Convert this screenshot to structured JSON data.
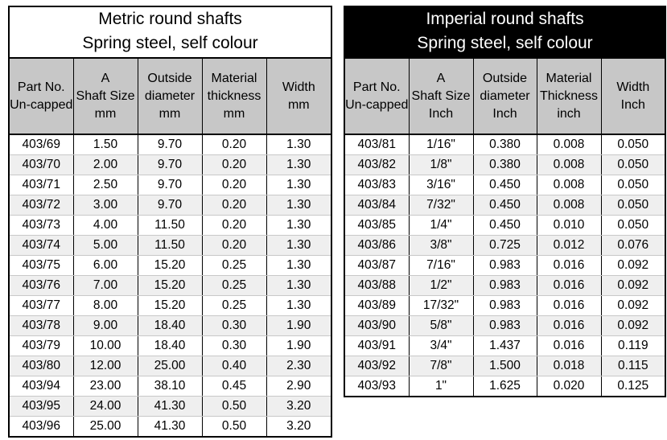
{
  "metric": {
    "title_line1": "Metric round shafts",
    "title_line2": "Spring steel, self colour",
    "headers": [
      [
        "Part No.",
        "Un-capped"
      ],
      [
        "A",
        "Shaft Size",
        "mm"
      ],
      [
        "Outside",
        "diameter",
        "mm"
      ],
      [
        "Material",
        "thickness",
        "mm"
      ],
      [
        "Width",
        "mm"
      ]
    ],
    "rows": [
      [
        "403/69",
        "1.50",
        "9.70",
        "0.20",
        "1.30"
      ],
      [
        "403/70",
        "2.00",
        "9.70",
        "0.20",
        "1.30"
      ],
      [
        "403/71",
        "2.50",
        "9.70",
        "0.20",
        "1.30"
      ],
      [
        "403/72",
        "3.00",
        "9.70",
        "0.20",
        "1.30"
      ],
      [
        "403/73",
        "4.00",
        "11.50",
        "0.20",
        "1.30"
      ],
      [
        "403/74",
        "5.00",
        "11.50",
        "0.20",
        "1.30"
      ],
      [
        "403/75",
        "6.00",
        "15.20",
        "0.25",
        "1.30"
      ],
      [
        "403/76",
        "7.00",
        "15.20",
        "0.25",
        "1.30"
      ],
      [
        "403/77",
        "8.00",
        "15.20",
        "0.25",
        "1.30"
      ],
      [
        "403/78",
        "9.00",
        "18.40",
        "0.30",
        "1.90"
      ],
      [
        "403/79",
        "10.00",
        "18.40",
        "0.30",
        "1.90"
      ],
      [
        "403/80",
        "12.00",
        "25.00",
        "0.40",
        "2.30"
      ],
      [
        "403/94",
        "23.00",
        "38.10",
        "0.45",
        "2.90"
      ],
      [
        "403/95",
        "24.00",
        "41.30",
        "0.50",
        "3.20"
      ],
      [
        "403/96",
        "25.00",
        "41.30",
        "0.50",
        "3.20"
      ]
    ]
  },
  "imperial": {
    "title_line1": "Imperial round shafts",
    "title_line2": "Spring steel, self colour",
    "headers": [
      [
        "Part No.",
        "Un-capped"
      ],
      [
        "A",
        "Shaft Size",
        "Inch"
      ],
      [
        "Outside",
        "diameter",
        "Inch"
      ],
      [
        "Material",
        "Thickness",
        "inch"
      ],
      [
        "Width",
        "Inch"
      ]
    ],
    "rows": [
      [
        "403/81",
        "1/16\"",
        "0.380",
        "0.008",
        "0.050"
      ],
      [
        "403/82",
        "1/8\"",
        "0.380",
        "0.008",
        "0.050"
      ],
      [
        "403/83",
        "3/16\"",
        "0.450",
        "0.008",
        "0.050"
      ],
      [
        "403/84",
        "7/32\"",
        "0.450",
        "0.008",
        "0.050"
      ],
      [
        "403/85",
        "1/4\"",
        "0.450",
        "0.010",
        "0.050"
      ],
      [
        "403/86",
        "3/8\"",
        "0.725",
        "0.012",
        "0.076"
      ],
      [
        "403/87",
        "7/16\"",
        "0.983",
        "0.016",
        "0.092"
      ],
      [
        "403/88",
        "1/2\"",
        "0.983",
        "0.016",
        "0.092"
      ],
      [
        "403/89",
        "17/32\"",
        "0.983",
        "0.016",
        "0.092"
      ],
      [
        "403/90",
        "5/8\"",
        "0.983",
        "0.016",
        "0.092"
      ],
      [
        "403/91",
        "3/4\"",
        "1.437",
        "0.016",
        "0.119"
      ],
      [
        "403/92",
        "7/8\"",
        "1.500",
        "0.018",
        "0.115"
      ],
      [
        "403/93",
        "1\"",
        "1.625",
        "0.020",
        "0.125"
      ]
    ]
  }
}
